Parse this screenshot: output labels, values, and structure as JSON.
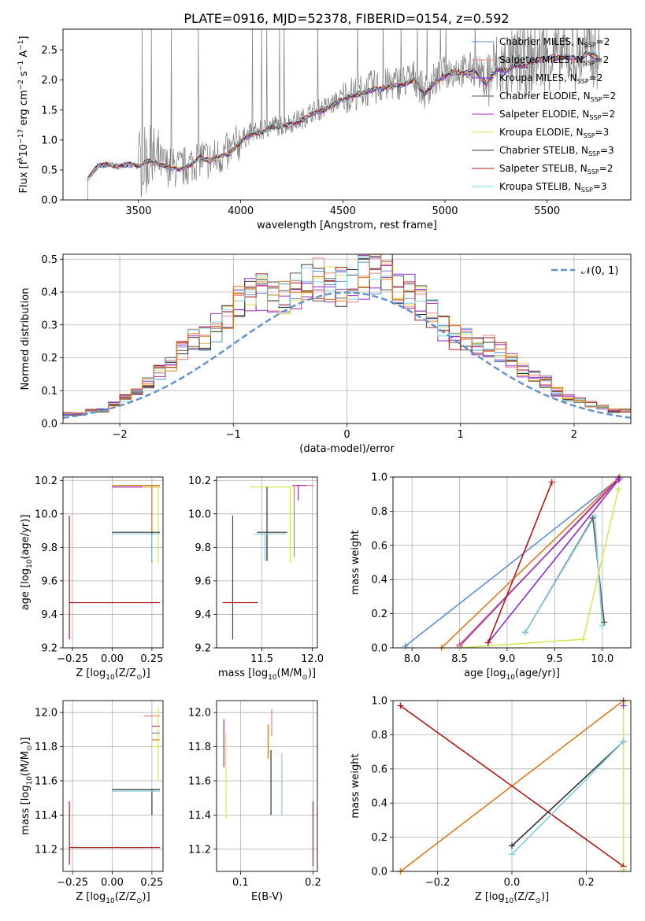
{
  "figure_title": "PLATE=0916, MJD=52378, FIBERID=0154, z=0.592",
  "colors": {
    "Chabrier MILES": "#5b8fd8",
    "Salpeter MILES": "#f08080",
    "Kroupa MILES": "#8a2be2",
    "Chabrier ELODIE": "#555555",
    "Salpeter ELODIE": "#a030b0",
    "Kroupa ELODIE": "#d4e85a",
    "Chabrier STELIB": "#333333",
    "Salpeter STELIB": "#b01818",
    "Kroupa STELIB": "#80d0e0",
    "orange": "#e07820",
    "gaussian": "#6090d0",
    "data_grey": "#808080"
  },
  "chart_data": [
    {
      "id": "spectrum",
      "type": "line",
      "xlabel": "wavelength [Angstrom, rest frame]",
      "ylabel_parts": [
        "Flux [f",
        "λ",
        "10",
        "−17",
        " erg cm",
        "−2",
        " s",
        "−1",
        " A",
        "−1",
        "]"
      ],
      "xlim": [
        3130,
        5910
      ],
      "ylim": [
        0,
        2.85
      ],
      "xticks": [
        3500,
        4000,
        4500,
        5000,
        5500
      ],
      "yticks": [
        0.0,
        0.5,
        1.0,
        1.5,
        2.0,
        2.5
      ],
      "grid": false,
      "legend_placement": "right",
      "legend": [
        {
          "base": "Chabrier MILES, N",
          "sub": "SSP",
          "tail": "=2",
          "color_key": "Chabrier MILES"
        },
        {
          "base": "Salpeter MILES, N",
          "sub": "SSP",
          "tail": "=2",
          "color_key": "Salpeter MILES"
        },
        {
          "base": "Kroupa MILES, N",
          "sub": "SSP",
          "tail": "=2",
          "color_key": "Kroupa MILES"
        },
        {
          "base": "Chabrier ELODIE, N",
          "sub": "SSP",
          "tail": "=2",
          "color_key": "Chabrier ELODIE"
        },
        {
          "base": "Salpeter ELODIE, N",
          "sub": "SSP",
          "tail": "=2",
          "color_key": "Salpeter ELODIE"
        },
        {
          "base": "Kroupa ELODIE, N",
          "sub": "SSP",
          "tail": "=3",
          "color_key": "Kroupa ELODIE"
        },
        {
          "base": "Chabrier STELIB, N",
          "sub": "SSP",
          "tail": "=3",
          "color_key": "Chabrier STELIB"
        },
        {
          "base": "Salpeter STELIB, N",
          "sub": "SSP",
          "tail": "=2",
          "color_key": "Salpeter STELIB"
        },
        {
          "base": "Kroupa STELIB, N",
          "sub": "SSP",
          "tail": "=3",
          "color_key": "Kroupa STELIB"
        }
      ],
      "model_x": [
        3250,
        3300,
        3350,
        3400,
        3450,
        3500,
        3550,
        3600,
        3650,
        3700,
        3750,
        3800,
        3850,
        3900,
        3950,
        4000,
        4050,
        4100,
        4150,
        4200,
        4250,
        4300,
        4350,
        4400,
        4450,
        4500,
        4550,
        4600,
        4650,
        4700,
        4750,
        4800,
        4850,
        4900,
        4950,
        5000,
        5050,
        5100,
        5150,
        5200,
        5250,
        5300,
        5350,
        5400,
        5450,
        5500,
        5550,
        5600,
        5650,
        5700,
        5750
      ],
      "model_y": [
        0.35,
        0.58,
        0.6,
        0.57,
        0.6,
        0.58,
        0.66,
        0.62,
        0.55,
        0.52,
        0.58,
        0.72,
        0.66,
        0.74,
        0.8,
        1.0,
        1.12,
        1.15,
        1.25,
        1.25,
        1.3,
        1.35,
        1.48,
        1.52,
        1.6,
        1.72,
        1.78,
        1.82,
        1.88,
        1.9,
        1.95,
        1.98,
        2.05,
        1.8,
        2.0,
        2.12,
        2.18,
        2.15,
        2.2,
        1.98,
        2.22,
        2.2,
        2.3,
        2.28,
        2.38,
        2.4,
        2.42,
        2.45,
        2.38,
        2.5,
        2.42
      ]
    },
    {
      "id": "residuals",
      "type": "step",
      "xlabel": "(data-model)/error",
      "ylabel": "Normed distribution",
      "xlim": [
        -2.5,
        2.5
      ],
      "ylim": [
        0,
        0.515
      ],
      "xticks": [
        -2,
        -1,
        0,
        1,
        2
      ],
      "yticks": [
        0.0,
        0.1,
        0.2,
        0.3,
        0.4,
        0.5
      ],
      "grid": true,
      "legend_placement": "top-right",
      "legend": [
        {
          "label": "𝒩(0, 1)",
          "color_key": "gaussian"
        }
      ],
      "bin_edges_start": -2.5,
      "bin_width": 0.1,
      "hist_envelope": [
        0.03,
        0.03,
        0.04,
        0.04,
        0.06,
        0.08,
        0.1,
        0.13,
        0.16,
        0.19,
        0.23,
        0.26,
        0.27,
        0.3,
        0.34,
        0.38,
        0.4,
        0.42,
        0.41,
        0.4,
        0.42,
        0.44,
        0.45,
        0.44,
        0.43,
        0.42,
        0.46,
        0.48,
        0.49,
        0.44,
        0.42,
        0.38,
        0.34,
        0.3,
        0.27,
        0.26,
        0.25,
        0.24,
        0.22,
        0.2,
        0.17,
        0.15,
        0.13,
        0.1,
        0.08,
        0.07,
        0.06,
        0.05,
        0.04,
        0.04
      ]
    },
    {
      "id": "age-vs-Z",
      "type": "errorbar",
      "xlabel_parts": [
        "Z [log",
        "10",
        "(Z/Z",
        "⊙",
        ")]"
      ],
      "ylabel_parts": [
        "age  [log",
        "10",
        "(age/yr)]"
      ],
      "xlim": [
        -0.31,
        0.32
      ],
      "ylim": [
        9.2,
        10.22
      ],
      "xticks": [
        -0.25,
        0.0,
        0.25
      ],
      "yticks": [
        9.2,
        9.4,
        9.6,
        9.8,
        10.0,
        10.2
      ],
      "grid": true,
      "points": [
        {
          "x": 0.25,
          "xerr": [
            0.25,
            0.05
          ],
          "y": 10.17,
          "yerr": [
            0.46,
            0.0
          ],
          "color_key": "Chabrier MILES"
        },
        {
          "x": 0.25,
          "xerr": [
            0.25,
            0.05
          ],
          "y": 10.17,
          "yerr": [
            0.0,
            0.0
          ],
          "color_key": "Salpeter MILES"
        },
        {
          "x": 0.26,
          "xerr": [
            0.26,
            0.04
          ],
          "y": 10.16,
          "yerr": [
            0.0,
            0.0
          ],
          "color_key": "Salpeter ELODIE"
        },
        {
          "x": 0.29,
          "xerr": [
            0.1,
            0.01
          ],
          "y": 10.16,
          "yerr": [
            0.45,
            0.0
          ],
          "color_key": "Kroupa ELODIE"
        },
        {
          "x": 0.25,
          "xerr": [
            0.25,
            0.05
          ],
          "y": 10.17,
          "yerr": [
            0.46,
            0.0
          ],
          "color_key": "orange"
        },
        {
          "x": 0.25,
          "xerr": [
            0.25,
            0.05
          ],
          "y": 9.89,
          "yerr": [
            0.17,
            0.0
          ],
          "color_key": "Chabrier STELIB"
        },
        {
          "x": 0.25,
          "xerr": [
            0.25,
            0.05
          ],
          "y": 9.88,
          "yerr": [
            0.16,
            0.0
          ],
          "color_key": "Kroupa STELIB"
        },
        {
          "x": -0.27,
          "xerr": [
            0.0,
            0.57
          ],
          "y": 9.47,
          "yerr": [
            0.22,
            0.52
          ],
          "color_key": "Salpeter STELIB"
        }
      ]
    },
    {
      "id": "age-vs-mass",
      "type": "errorbar",
      "xlabel_parts": [
        "mass [log",
        "10",
        "(M/M",
        "⊙",
        ")]"
      ],
      "xlim": [
        11.05,
        12.05
      ],
      "ylim": [
        9.2,
        10.22
      ],
      "xticks": [
        11.5,
        12.0
      ],
      "yticks": [
        9.2,
        9.4,
        9.6,
        9.8,
        10.0,
        10.2
      ],
      "grid": true,
      "points": [
        {
          "x": 11.82,
          "xerr": [
            0.0,
            0.2
          ],
          "y": 10.17,
          "yerr": [
            0.0,
            0.0
          ],
          "color_key": "Salpeter MILES"
        },
        {
          "x": 11.86,
          "xerr": [
            0.06,
            0.08
          ],
          "y": 10.17,
          "yerr": [
            0.09,
            0.0
          ],
          "color_key": "Salpeter ELODIE"
        },
        {
          "x": 11.78,
          "xerr": [
            0.4,
            0.0
          ],
          "y": 10.16,
          "yerr": [
            0.45,
            0.0
          ],
          "color_key": "Kroupa ELODIE"
        },
        {
          "x": 11.82,
          "xerr": [
            0.0,
            0.02
          ],
          "y": 10.17,
          "yerr": [
            0.43,
            0.0
          ],
          "color_key": "orange"
        },
        {
          "x": 11.55,
          "xerr": [
            0.0,
            0.0
          ],
          "y": 10.16,
          "yerr": [
            0.44,
            0.0
          ],
          "color_key": "Chabrier STELIB"
        },
        {
          "x": 11.55,
          "xerr": [
            0.1,
            0.2
          ],
          "y": 9.89,
          "yerr": [
            0.17,
            0.0
          ],
          "color_key": "Chabrier STELIB"
        },
        {
          "x": 11.53,
          "xerr": [
            0.1,
            0.2
          ],
          "y": 9.88,
          "yerr": [
            0.16,
            0.0
          ],
          "color_key": "Kroupa STELIB"
        },
        {
          "x": 11.21,
          "xerr": [
            0.1,
            0.25
          ],
          "y": 9.47,
          "yerr": [
            0.22,
            0.52
          ],
          "color_key": "Salpeter STELIB"
        }
      ]
    },
    {
      "id": "weight-vs-age",
      "type": "line",
      "xlabel_parts": [
        "age  [log",
        "10",
        "(age/yr)]"
      ],
      "ylabel": "mass weight",
      "xlim": [
        7.8,
        10.3
      ],
      "ylim": [
        0,
        1.0
      ],
      "xticks": [
        8.0,
        8.5,
        9.0,
        9.5,
        10.0
      ],
      "yticks": [
        0.0,
        0.2,
        0.4,
        0.6,
        0.8,
        1.0
      ],
      "grid": true,
      "series": [
        {
          "color_key": "Chabrier MILES",
          "x": [
            7.93,
            10.17
          ],
          "y": [
            0.01,
            0.99
          ]
        },
        {
          "color_key": "Salpeter MILES",
          "x": [
            8.5,
            10.17
          ],
          "y": [
            0.02,
            0.98
          ]
        },
        {
          "color_key": "orange",
          "x": [
            8.31,
            10.18
          ],
          "y": [
            0.0,
            1.0
          ]
        },
        {
          "color_key": "Salpeter ELODIE",
          "x": [
            8.5,
            10.17
          ],
          "y": [
            0.01,
            0.99
          ]
        },
        {
          "color_key": "Kroupa MILES",
          "x": [
            8.8,
            10.18
          ],
          "y": [
            0.03,
            0.99
          ]
        },
        {
          "color_key": "Salpeter STELIB",
          "x": [
            8.8,
            9.47
          ],
          "y": [
            0.03,
            0.97
          ]
        },
        {
          "color_key": "Chabrier ELODIE",
          "x": [
            9.19,
            9.9,
            10.02
          ],
          "y": [
            0.09,
            0.76,
            0.15
          ]
        },
        {
          "color_key": "Kroupa STELIB",
          "x": [
            9.19,
            9.92,
            10.0
          ],
          "y": [
            0.09,
            0.77,
            0.13
          ]
        },
        {
          "color_key": "Kroupa ELODIE",
          "x": [
            8.5,
            9.8,
            10.17
          ],
          "y": [
            0.0,
            0.05,
            0.93
          ]
        }
      ]
    },
    {
      "id": "mass-vs-Z",
      "type": "errorbar",
      "xlabel_parts": [
        "Z [log",
        "10",
        "(Z/Z",
        "⊙",
        ")]"
      ],
      "ylabel_parts": [
        "mass [log",
        "10",
        "(M/M",
        "⊙",
        ")]"
      ],
      "xlim": [
        -0.31,
        0.32
      ],
      "ylim": [
        11.07,
        12.07
      ],
      "xticks": [
        -0.25,
        0.0,
        0.25
      ],
      "yticks": [
        11.2,
        11.4,
        11.6,
        11.8,
        12.0
      ],
      "grid": true,
      "points": [
        {
          "x": 0.25,
          "xerr": [
            0.05,
            0.05
          ],
          "y": 11.98,
          "yerr": [
            0.0,
            0.0
          ],
          "color_key": "Salpeter MILES"
        },
        {
          "x": 0.25,
          "xerr": [
            0.0,
            0.05
          ],
          "y": 11.92,
          "yerr": [
            0.0,
            0.0
          ],
          "color_key": "Salpeter ELODIE"
        },
        {
          "x": 0.25,
          "xerr": [
            0.0,
            0.05
          ],
          "y": 11.88,
          "yerr": [
            0.0,
            0.0
          ],
          "color_key": "Chabrier MILES"
        },
        {
          "x": 0.25,
          "xerr": [
            0.0,
            0.05
          ],
          "y": 11.84,
          "yerr": [
            0.0,
            0.0
          ],
          "color_key": "orange"
        },
        {
          "x": 0.25,
          "xerr": [
            0.0,
            0.05
          ],
          "y": 11.8,
          "yerr": [
            0.0,
            0.0
          ],
          "color_key": "Kroupa ELODIE"
        },
        {
          "x": 0.29,
          "xerr": [
            0.0,
            0.0
          ],
          "y": 11.95,
          "yerr": [
            0.35,
            0.08
          ],
          "color_key": "Kroupa ELODIE"
        },
        {
          "x": 0.25,
          "xerr": [
            0.25,
            0.05
          ],
          "y": 11.55,
          "yerr": [
            0.15,
            0.0
          ],
          "color_key": "Chabrier STELIB"
        },
        {
          "x": 0.25,
          "xerr": [
            0.25,
            0.05
          ],
          "y": 11.54,
          "yerr": [
            0.0,
            0.0
          ],
          "color_key": "Kroupa STELIB"
        },
        {
          "x": -0.27,
          "xerr": [
            0.0,
            0.57
          ],
          "y": 11.21,
          "yerr": [
            0.1,
            0.27
          ],
          "color_key": "Salpeter STELIB"
        }
      ]
    },
    {
      "id": "mass-vs-EBV",
      "type": "errorbar",
      "xlabel": "E(B-V)",
      "xlim": [
        0.067,
        0.206
      ],
      "ylim": [
        11.07,
        12.07
      ],
      "xticks": [
        0.1,
        0.2
      ],
      "yticks": [
        11.2,
        11.4,
        11.6,
        11.8,
        12.0
      ],
      "grid": true,
      "points": [
        {
          "x": 0.077,
          "y": 11.82,
          "yerr": [
            0.14,
            0.14
          ],
          "color_key": "Salpeter ELODIE"
        },
        {
          "x": 0.08,
          "y": 11.62,
          "yerr": [
            0.24,
            0.26
          ],
          "color_key": "Kroupa ELODIE"
        },
        {
          "x": 0.138,
          "y": 11.83,
          "yerr": [
            0.1,
            0.1
          ],
          "color_key": "orange"
        },
        {
          "x": 0.142,
          "y": 11.58,
          "yerr": [
            0.18,
            0.2
          ],
          "color_key": "Chabrier STELIB"
        },
        {
          "x": 0.143,
          "y": 11.94,
          "yerr": [
            0.08,
            0.08
          ],
          "color_key": "Salpeter MILES"
        },
        {
          "x": 0.157,
          "y": 11.58,
          "yerr": [
            0.18,
            0.18
          ],
          "color_key": "Kroupa STELIB"
        },
        {
          "x": 0.2,
          "y": 11.29,
          "yerr": [
            0.19,
            0.19
          ],
          "color_key": "Salpeter STELIB"
        }
      ]
    },
    {
      "id": "weight-vs-Z",
      "type": "line",
      "xlabel_parts": [
        "Z [log",
        "10",
        "(Z/Z",
        "⊙",
        ")]"
      ],
      "ylabel": "mass weight",
      "xlim": [
        -0.32,
        0.32
      ],
      "ylim": [
        0,
        1.0
      ],
      "xticks": [
        -0.2,
        0.0,
        0.2
      ],
      "yticks": [
        0.0,
        0.2,
        0.4,
        0.6,
        0.8,
        1.0
      ],
      "grid": true,
      "series": [
        {
          "color_key": "orange",
          "x": [
            -0.3,
            0.3
          ],
          "y": [
            0.0,
            1.0
          ]
        },
        {
          "color_key": "Salpeter STELIB",
          "x": [
            -0.3,
            0.3
          ],
          "y": [
            0.97,
            0.03
          ]
        },
        {
          "color_key": "Chabrier STELIB",
          "x": [
            0.0,
            0.3
          ],
          "y": [
            0.15,
            0.76
          ]
        },
        {
          "color_key": "Kroupa STELIB",
          "x": [
            0.0,
            0.3
          ],
          "y": [
            0.1,
            0.76
          ]
        },
        {
          "color_key": "Kroupa ELODIE",
          "x": [
            0.3,
            0.3
          ],
          "y": [
            0.01,
            0.99
          ]
        },
        {
          "color_key": "Salpeter ELODIE",
          "x": [
            0.3,
            0.3
          ],
          "y": [
            0.97,
            1.0
          ]
        }
      ]
    }
  ]
}
